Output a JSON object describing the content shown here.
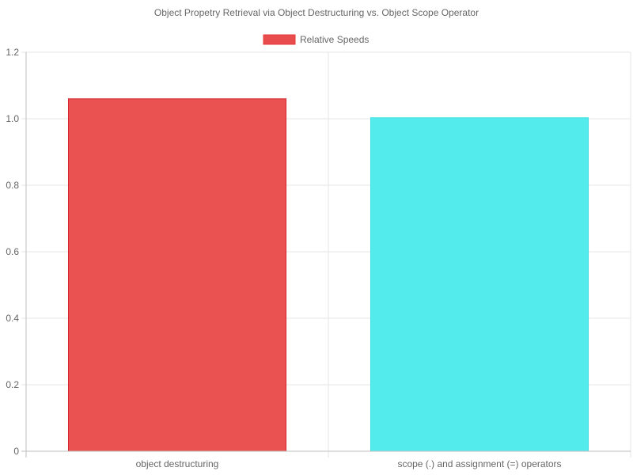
{
  "chart_data": {
    "type": "bar",
    "title": "Object Propetry Retrieval via Object Destructuring vs. Object Scope Operator",
    "legend": {
      "position": "top",
      "entries": [
        {
          "label": "Relative Speeds",
          "color": "#e53838"
        }
      ]
    },
    "categories": [
      "object destructuring",
      "scope (.) and assignment (=) operators"
    ],
    "series": [
      {
        "name": "Relative Speeds",
        "values": [
          1.06,
          1.003
        ],
        "colors": [
          "#ea5252",
          "#53ebeb"
        ],
        "border_colors": [
          "#d8262c",
          "#3ee0e4"
        ]
      }
    ],
    "ylim": [
      0,
      1.2
    ],
    "y_ticks": [
      "0",
      "0.2",
      "0.4",
      "0.6",
      "0.8",
      "1.0",
      "1.2"
    ],
    "y_tick_values": [
      0,
      0.2,
      0.4,
      0.6,
      0.8,
      1.0,
      1.2
    ],
    "grid": true
  }
}
